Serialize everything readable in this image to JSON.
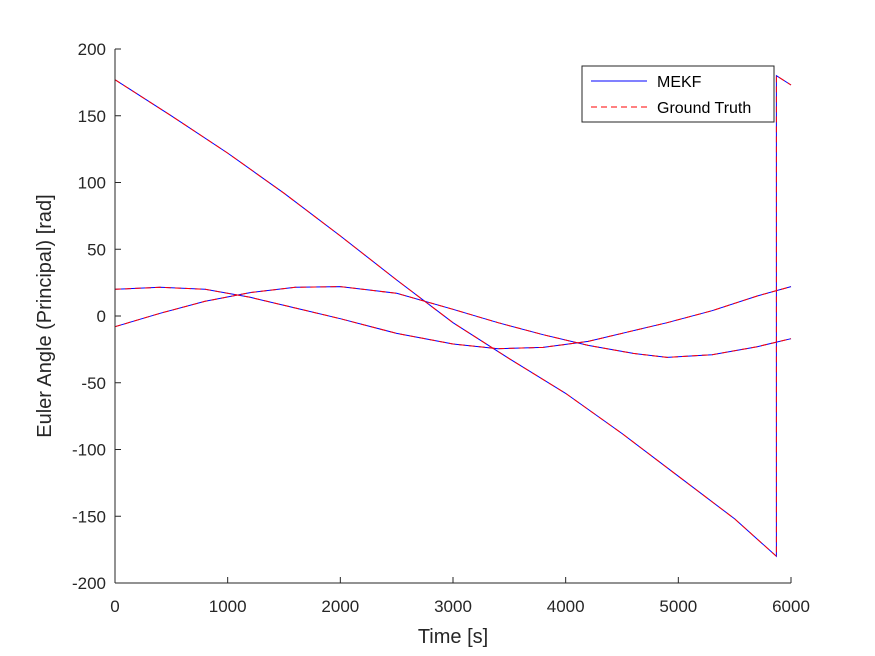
{
  "chart_data": {
    "type": "line",
    "xlabel": "Time [s]",
    "ylabel": "Euler Angle (Principal) [rad]",
    "xlim": [
      0,
      6000
    ],
    "ylim": [
      -200,
      200
    ],
    "xticks": [
      0,
      1000,
      2000,
      3000,
      4000,
      5000,
      6000
    ],
    "yticks": [
      -200,
      -150,
      -100,
      -50,
      0,
      50,
      100,
      150,
      200
    ],
    "xtick_labels": [
      "0",
      "1000",
      "2000",
      "3000",
      "4000",
      "5000",
      "6000"
    ],
    "ytick_labels": [
      "-200",
      "-150",
      "-100",
      "-50",
      "0",
      "50",
      "100",
      "150",
      "200"
    ],
    "grid": false,
    "legend_position": "top-right",
    "legend": [
      {
        "label": "MEKF",
        "color": "#0000ff",
        "dash": "solid"
      },
      {
        "label": "Ground Truth",
        "color": "#ff0000",
        "dash": "dashed"
      }
    ],
    "series": [
      {
        "name": "MEKF",
        "color": "#0000ff",
        "dash": "solid",
        "curves": [
          {
            "x": [
              0,
              500,
              1000,
              1500,
              2000,
              2500,
              3000,
              3500,
              4000,
              4500,
              5000,
              5500,
              5870,
              5870.5,
              6000
            ],
            "y": [
              177,
              150,
              122,
              92,
              60,
              27,
              -5,
              -32,
              -58,
              -88,
              -120,
              -152,
              -180,
              180,
              173
            ]
          },
          {
            "x": [
              0,
              400,
              800,
              1200,
              1600,
              2000,
              2500,
              3000,
              3400,
              3800,
              4200,
              4600,
              4900,
              5300,
              5700,
              6000
            ],
            "y": [
              20,
              21.5,
              20,
              14,
              6,
              -2,
              -13,
              -21,
              -24.5,
              -23.5,
              -19,
              -11,
              -5,
              4,
              15,
              22
            ]
          },
          {
            "x": [
              0,
              400,
              800,
              1200,
              1600,
              2000,
              2500,
              3000,
              3400,
              3800,
              4200,
              4600,
              4900,
              5300,
              5700,
              6000
            ],
            "y": [
              -8,
              2,
              11,
              17.5,
              21.5,
              22,
              17,
              5,
              -5,
              -14,
              -22,
              -28,
              -31,
              -29,
              -23,
              -17
            ]
          }
        ]
      },
      {
        "name": "Ground Truth",
        "color": "#ff0000",
        "dash": "dashed",
        "curves": [
          {
            "x": [
              0,
              500,
              1000,
              1500,
              2000,
              2500,
              3000,
              3500,
              4000,
              4500,
              5000,
              5500,
              5870,
              5870.5,
              6000
            ],
            "y": [
              177,
              150,
              122,
              92,
              60,
              27,
              -5,
              -32,
              -58,
              -88,
              -120,
              -152,
              -180,
              180,
              173
            ]
          },
          {
            "x": [
              0,
              400,
              800,
              1200,
              1600,
              2000,
              2500,
              3000,
              3400,
              3800,
              4200,
              4600,
              4900,
              5300,
              5700,
              6000
            ],
            "y": [
              20,
              21.5,
              20,
              14,
              6,
              -2,
              -13,
              -21,
              -24.5,
              -23.5,
              -19,
              -11,
              -5,
              4,
              15,
              22
            ]
          },
          {
            "x": [
              0,
              400,
              800,
              1200,
              1600,
              2000,
              2500,
              3000,
              3400,
              3800,
              4200,
              4600,
              4900,
              5300,
              5700,
              6000
            ],
            "y": [
              -8,
              2,
              11,
              17.5,
              21.5,
              22,
              17,
              5,
              -5,
              -14,
              -22,
              -28,
              -31,
              -29,
              -23,
              -17
            ]
          }
        ]
      }
    ]
  }
}
